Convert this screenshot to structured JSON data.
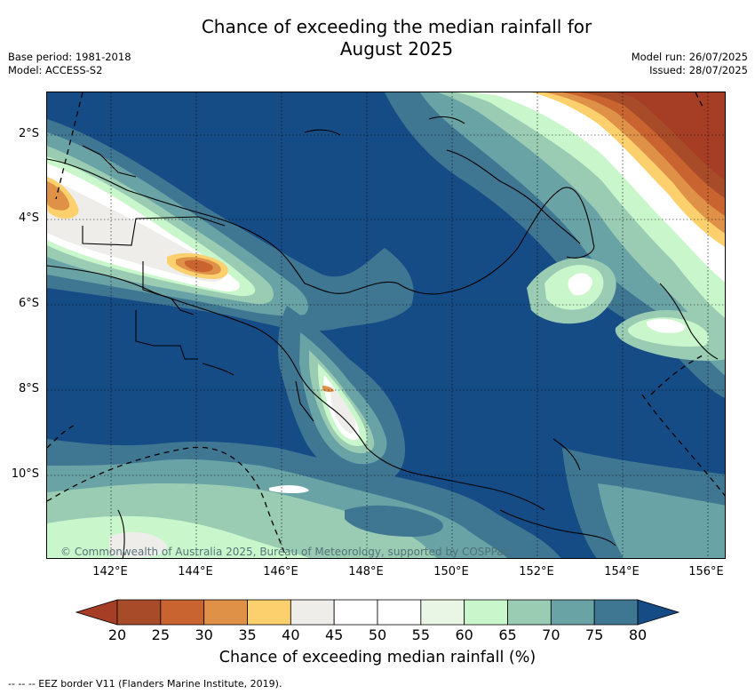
{
  "title_line1": "Chance of exceeding the median rainfall for",
  "title_line2": "August 2025",
  "meta_left": [
    "Base period: 1981-2018",
    "Model: ACCESS-S2"
  ],
  "meta_right": [
    "Model run: 26/07/2025",
    "Issued: 28/07/2025"
  ],
  "copyright": "© Commonwealth of Australia 2025, Bureau of Meteorology, supported by COSPPac",
  "lat_labels": [
    "2°S",
    "4°S",
    "6°S",
    "8°S",
    "10°S"
  ],
  "lon_labels": [
    "142°E",
    "144°E",
    "146°E",
    "148°E",
    "150°E",
    "152°E",
    "154°E",
    "156°E"
  ],
  "colorbar": {
    "ticks": [
      "20",
      "25",
      "30",
      "35",
      "40",
      "45",
      "50",
      "55",
      "60",
      "65",
      "70",
      "75",
      "80"
    ],
    "colors": [
      "#a63d25",
      "#a84b28",
      "#c96431",
      "#e09148",
      "#fcd06d",
      "#efedea",
      "#ffffff",
      "#ffffff",
      "#e9f6e6",
      "#c9f7cb",
      "#99ccb3",
      "#6aa3a6",
      "#3f7793",
      "#164c86"
    ],
    "label": "Chance of exceeding median rainfall (%)"
  },
  "footer_note": "--  --  -- EEZ border V11 (Flanders Marine Institute, 2019)."
}
